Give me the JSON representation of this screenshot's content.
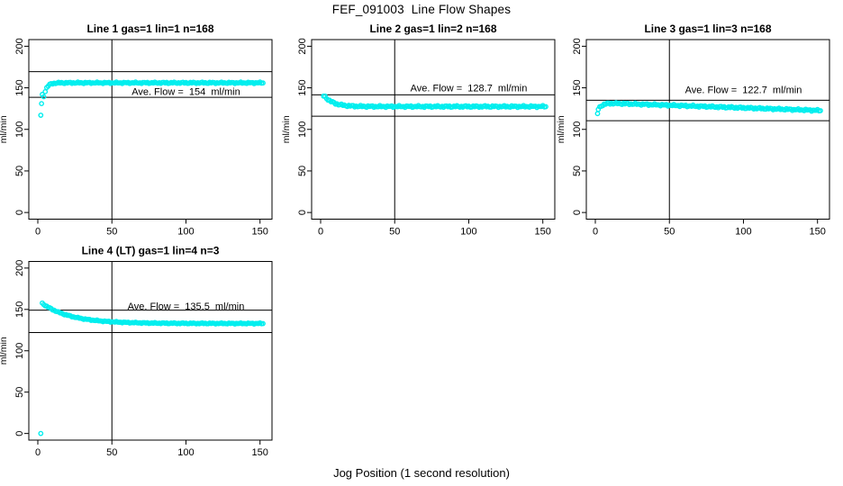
{
  "figure": {
    "title": "FEF_091003  Line Flow Shapes",
    "xlabel": "Jog Position (1 second resolution)",
    "background": "#ffffff",
    "axis_color": "#000000",
    "point_color": "#00eeee"
  },
  "chart_data": [
    {
      "type": "scatter",
      "title": "Line 1 gas=1 lin=1 n=168",
      "ylabel": "ml/min",
      "ave_flow": 154,
      "ave_flow_label": "Ave. Flow =  154  ml/min",
      "n": 168,
      "xlim": [
        0,
        152
      ],
      "ylim": [
        0,
        200
      ],
      "x_ticks": [
        0,
        50,
        100,
        150
      ],
      "y_ticks": [
        0,
        50,
        100,
        150,
        200
      ],
      "grid": "off",
      "legend": "none",
      "marker": "open-circle",
      "vline": 50,
      "hlines": [
        169.4,
        138.6
      ],
      "label_anchor": [
        100,
        146
      ],
      "series_desc": "flow rises rapidly from ~117 ml/min at jog 2 and settles flat near 156 ml/min through jog 152",
      "outliers": [
        [
          2,
          117
        ],
        [
          2.5,
          131
        ],
        [
          3,
          142
        ]
      ],
      "curve": {
        "from": 4,
        "to": 152,
        "step": 1,
        "base": 156,
        "amp": -27,
        "tau": 2.0,
        "x0": 3,
        "slope": 0,
        "jitter": 0.8
      }
    },
    {
      "type": "scatter",
      "title": "Line 2 gas=1 lin=2 n=168",
      "ylabel": "ml/min",
      "ave_flow": 128.7,
      "ave_flow_label": "Ave. Flow =  128.7  ml/min",
      "n": 168,
      "xlim": [
        0,
        152
      ],
      "ylim": [
        0,
        200
      ],
      "x_ticks": [
        0,
        50,
        100,
        150
      ],
      "y_ticks": [
        0,
        50,
        100,
        150,
        200
      ],
      "grid": "off",
      "legend": "none",
      "marker": "open-circle",
      "vline": 50,
      "hlines": [
        141.6,
        115.8
      ],
      "label_anchor": [
        100,
        150
      ],
      "series_desc": "flow starts near 141 ml/min at jog 2 and decays to a flat level near 127.5 ml/min",
      "outliers": [
        [
          2,
          140
        ]
      ],
      "curve": {
        "from": 3,
        "to": 152,
        "step": 1,
        "base": 127.5,
        "amp": 14,
        "tau": 6,
        "x0": 2,
        "slope": 0,
        "jitter": 1.0
      }
    },
    {
      "type": "scatter",
      "title": "Line 3 gas=1 lin=3 n=168",
      "ylabel": "ml/min",
      "ave_flow": 122.7,
      "ave_flow_label": "Ave. Flow =  122.7  ml/min",
      "n": 168,
      "xlim": [
        0,
        152
      ],
      "ylim": [
        0,
        200
      ],
      "x_ticks": [
        0,
        50,
        100,
        150
      ],
      "y_ticks": [
        0,
        50,
        100,
        150,
        200
      ],
      "grid": "off",
      "legend": "none",
      "marker": "open-circle",
      "vline": 50,
      "hlines": [
        135.0,
        110.4
      ],
      "label_anchor": [
        100,
        148
      ],
      "series_desc": "flow jumps from ~119 ml/min to ~132, then drifts slowly down to ~122.7 ml/min at jog 152",
      "outliers": [
        [
          1.5,
          119
        ],
        [
          2,
          124
        ]
      ],
      "curve": {
        "from": 3,
        "to": 152,
        "step": 1,
        "base": 132,
        "amp": -8,
        "tau": 2.5,
        "x0": 2,
        "slope": -0.062,
        "jitter": 1.0
      }
    },
    {
      "type": "scatter",
      "title": "Line 4 (LT) gas=1 lin=4 n=3",
      "ylabel": "ml/min",
      "ave_flow": 135.5,
      "ave_flow_label": "Ave. Flow =  135.5  ml/min",
      "n": 3,
      "xlim": [
        0,
        152
      ],
      "ylim": [
        0,
        200
      ],
      "x_ticks": [
        0,
        50,
        100,
        150
      ],
      "y_ticks": [
        0,
        50,
        100,
        150,
        200
      ],
      "grid": "off",
      "legend": "none",
      "marker": "open-circle",
      "vline": 50,
      "hlines": [
        149.1,
        122.0
      ],
      "label_anchor": [
        100,
        154
      ],
      "series_desc": "one point at 0 ml/min near jog 2; main trace decays exponentially from ~160 ml/min to ~133 ml/min",
      "outliers": [
        [
          2,
          0
        ]
      ],
      "curve": {
        "from": 3,
        "to": 152,
        "step": 1,
        "base": 133,
        "amp": 27,
        "tau": 19,
        "x0": 1,
        "slope": 0,
        "jitter": 0.6
      }
    }
  ]
}
